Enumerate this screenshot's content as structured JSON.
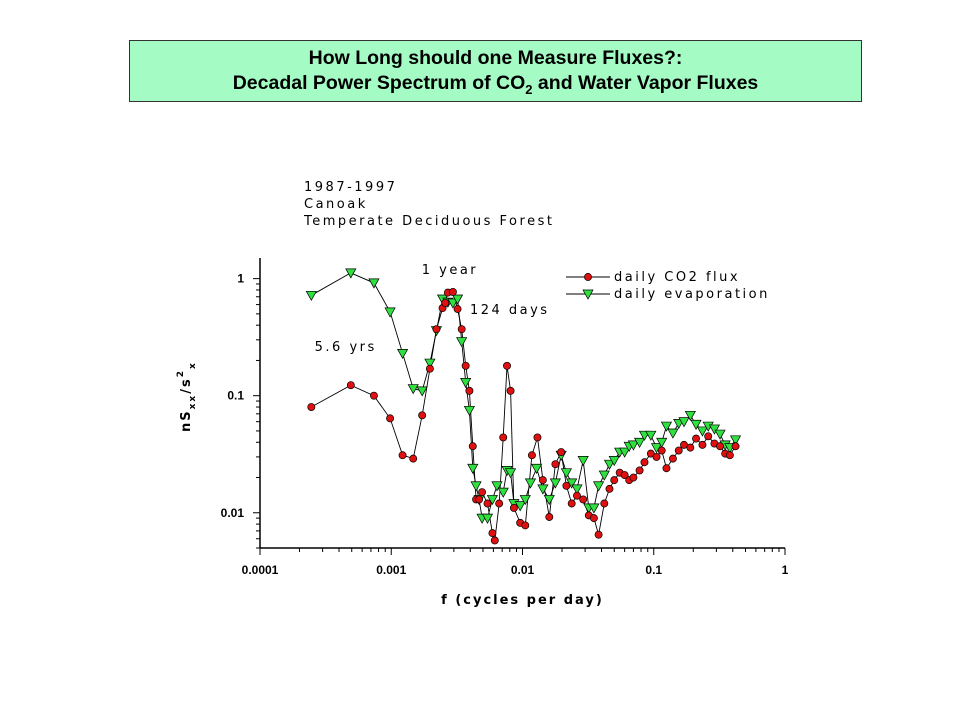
{
  "slide": {
    "title_line1": "How Long should one Measure Fluxes?:",
    "title_line2_pre": "Decadal Power Spectrum of CO",
    "title_line2_sub": "2",
    "title_line2_post": " and Water Vapor Fluxes",
    "title_bg": "#a4fcc4"
  },
  "chart_data": {
    "type": "scatter",
    "xscale": "log",
    "yscale": "log",
    "xlim": [
      0.0001,
      1
    ],
    "ylim": [
      0.005,
      1.5
    ],
    "xlabel": "f (cycles per day)",
    "ylabel": {
      "base": "nS",
      "sub": "xx",
      "mid": "/s",
      "sup": "2",
      "sub2": "x"
    },
    "x_ticks": [
      {
        "v": 0.0001,
        "label": "0.0001"
      },
      {
        "v": 0.001,
        "label": "0.001"
      },
      {
        "v": 0.01,
        "label": "0.01"
      },
      {
        "v": 0.1,
        "label": "0.1"
      },
      {
        "v": 1,
        "label": "1"
      }
    ],
    "y_ticks": [
      {
        "v": 1,
        "label": "1"
      },
      {
        "v": 0.1,
        "label": "0.1"
      },
      {
        "v": 0.01,
        "label": "0.01"
      }
    ],
    "info_text": [
      "1987-1997",
      "Canoak",
      "Temperate Deciduous Forest"
    ],
    "annotations": [
      {
        "text": "1 year",
        "x": 0.0028,
        "y": 1.1
      },
      {
        "text": "124 days",
        "x": 0.008,
        "y": 0.5
      },
      {
        "text": "5.6 yrs",
        "x": 0.00045,
        "y": 0.24
      }
    ],
    "legend_position": "top-right",
    "series": [
      {
        "name": "daily CO2 flux",
        "marker": "circle",
        "color": "#e01010",
        "points": [
          [
            0.000246,
            0.08
          ],
          [
            0.000492,
            0.123
          ],
          [
            0.000738,
            0.1
          ],
          [
            0.00098,
            0.064
          ],
          [
            0.00122,
            0.031
          ],
          [
            0.00147,
            0.029
          ],
          [
            0.00172,
            0.068
          ],
          [
            0.00197,
            0.17
          ],
          [
            0.00221,
            0.37
          ],
          [
            0.00246,
            0.56
          ],
          [
            0.00258,
            0.62
          ],
          [
            0.0027,
            0.76
          ],
          [
            0.00295,
            0.77
          ],
          [
            0.0032,
            0.55
          ],
          [
            0.00344,
            0.37
          ],
          [
            0.00369,
            0.18
          ],
          [
            0.00394,
            0.11
          ],
          [
            0.00418,
            0.037
          ],
          [
            0.00443,
            0.013
          ],
          [
            0.00467,
            0.013
          ],
          [
            0.00492,
            0.015
          ],
          [
            0.00541,
            0.012
          ],
          [
            0.0059,
            0.0067
          ],
          [
            0.00615,
            0.0058
          ],
          [
            0.00664,
            0.012
          ],
          [
            0.00713,
            0.044
          ],
          [
            0.00762,
            0.18
          ],
          [
            0.00811,
            0.11
          ],
          [
            0.0086,
            0.011
          ],
          [
            0.0096,
            0.0082
          ],
          [
            0.0105,
            0.0078
          ],
          [
            0.0118,
            0.031
          ],
          [
            0.013,
            0.044
          ],
          [
            0.0143,
            0.019
          ],
          [
            0.016,
            0.0092
          ],
          [
            0.0178,
            0.026
          ],
          [
            0.0197,
            0.033
          ],
          [
            0.0216,
            0.017
          ],
          [
            0.0237,
            0.012
          ],
          [
            0.026,
            0.014
          ],
          [
            0.029,
            0.013
          ],
          [
            0.032,
            0.0095
          ],
          [
            0.035,
            0.009
          ],
          [
            0.038,
            0.0065
          ],
          [
            0.042,
            0.012
          ],
          [
            0.046,
            0.016
          ],
          [
            0.05,
            0.019
          ],
          [
            0.055,
            0.022
          ],
          [
            0.06,
            0.021
          ],
          [
            0.065,
            0.019
          ],
          [
            0.07,
            0.02
          ],
          [
            0.078,
            0.023
          ],
          [
            0.085,
            0.027
          ],
          [
            0.095,
            0.032
          ],
          [
            0.105,
            0.03
          ],
          [
            0.115,
            0.034
          ],
          [
            0.125,
            0.024
          ],
          [
            0.14,
            0.029
          ],
          [
            0.155,
            0.034
          ],
          [
            0.17,
            0.038
          ],
          [
            0.19,
            0.036
          ],
          [
            0.21,
            0.043
          ],
          [
            0.235,
            0.038
          ],
          [
            0.26,
            0.045
          ],
          [
            0.29,
            0.039
          ],
          [
            0.32,
            0.037
          ],
          [
            0.35,
            0.032
          ],
          [
            0.38,
            0.031
          ],
          [
            0.42,
            0.037
          ]
        ]
      },
      {
        "name": "daily evaporation",
        "marker": "triangle-down",
        "color": "#30e040",
        "points": [
          [
            0.000246,
            0.72
          ],
          [
            0.000492,
            1.12
          ],
          [
            0.000738,
            0.92
          ],
          [
            0.00098,
            0.52
          ],
          [
            0.00122,
            0.23
          ],
          [
            0.00147,
            0.115
          ],
          [
            0.00172,
            0.11
          ],
          [
            0.00197,
            0.19
          ],
          [
            0.00221,
            0.36
          ],
          [
            0.00246,
            0.67
          ],
          [
            0.0027,
            0.63
          ],
          [
            0.00295,
            0.62
          ],
          [
            0.0032,
            0.67
          ],
          [
            0.00344,
            0.29
          ],
          [
            0.00369,
            0.13
          ],
          [
            0.00394,
            0.075
          ],
          [
            0.00418,
            0.024
          ],
          [
            0.00443,
            0.017
          ],
          [
            0.00467,
            0.013
          ],
          [
            0.00492,
            0.009
          ],
          [
            0.00541,
            0.009
          ],
          [
            0.0059,
            0.013
          ],
          [
            0.00639,
            0.017
          ],
          [
            0.00713,
            0.015
          ],
          [
            0.00762,
            0.023
          ],
          [
            0.00811,
            0.022
          ],
          [
            0.0086,
            0.012
          ],
          [
            0.0096,
            0.0115
          ],
          [
            0.0105,
            0.013
          ],
          [
            0.0115,
            0.018
          ],
          [
            0.0128,
            0.024
          ],
          [
            0.0143,
            0.016
          ],
          [
            0.016,
            0.013
          ],
          [
            0.0178,
            0.018
          ],
          [
            0.0197,
            0.031
          ],
          [
            0.0216,
            0.022
          ],
          [
            0.0237,
            0.018
          ],
          [
            0.026,
            0.016
          ],
          [
            0.029,
            0.028
          ],
          [
            0.032,
            0.011
          ],
          [
            0.035,
            0.011
          ],
          [
            0.038,
            0.017
          ],
          [
            0.042,
            0.021
          ],
          [
            0.046,
            0.026
          ],
          [
            0.05,
            0.028
          ],
          [
            0.055,
            0.033
          ],
          [
            0.06,
            0.033
          ],
          [
            0.065,
            0.037
          ],
          [
            0.07,
            0.038
          ],
          [
            0.078,
            0.04
          ],
          [
            0.085,
            0.046
          ],
          [
            0.095,
            0.046
          ],
          [
            0.105,
            0.036
          ],
          [
            0.115,
            0.04
          ],
          [
            0.125,
            0.055
          ],
          [
            0.14,
            0.048
          ],
          [
            0.155,
            0.058
          ],
          [
            0.17,
            0.06
          ],
          [
            0.19,
            0.068
          ],
          [
            0.21,
            0.057
          ],
          [
            0.235,
            0.05
          ],
          [
            0.26,
            0.055
          ],
          [
            0.29,
            0.052
          ],
          [
            0.32,
            0.047
          ],
          [
            0.35,
            0.038
          ],
          [
            0.38,
            0.036
          ],
          [
            0.42,
            0.042
          ]
        ]
      }
    ]
  }
}
